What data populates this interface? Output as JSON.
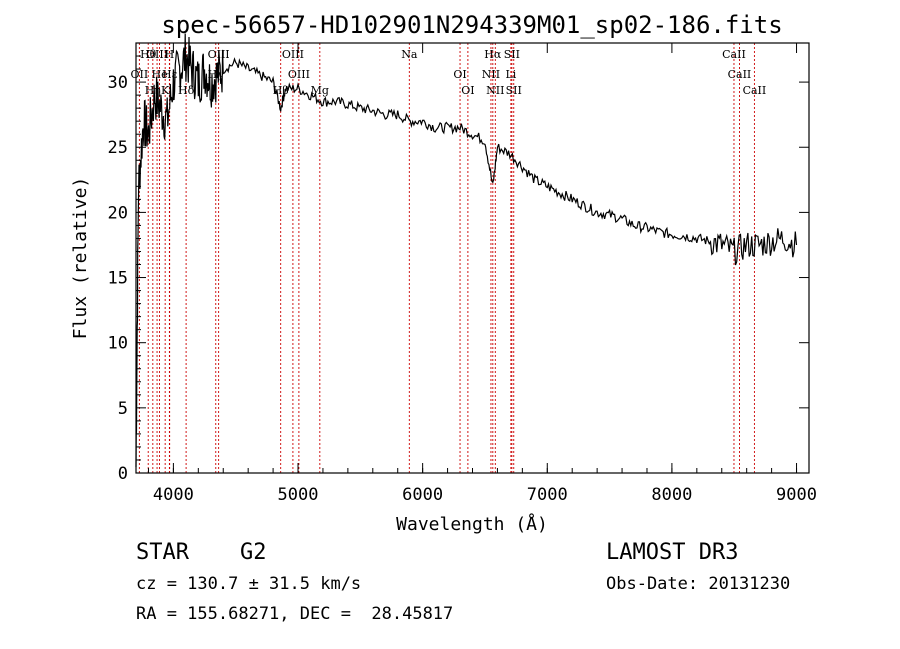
{
  "chart_data": {
    "type": "line",
    "title": "spec-56657-HD102901N294339M01_sp02-186.fits",
    "xlabel": "Wavelength (Å)",
    "ylabel": "Flux (relative)",
    "xlim": [
      3700,
      9100
    ],
    "ylim": [
      0,
      33
    ],
    "xticks": [
      4000,
      5000,
      6000,
      7000,
      8000,
      9000
    ],
    "xtick_labels": [
      "4000",
      "5000",
      "6000",
      "7000",
      "8000",
      "9000"
    ],
    "yticks": [
      0,
      5,
      10,
      15,
      20,
      25,
      30
    ],
    "ytick_labels": [
      "0",
      "5",
      "10",
      "15",
      "20",
      "25",
      "30"
    ],
    "grid": false,
    "series": [
      {
        "name": "flux",
        "x": [
          3700,
          3720,
          3760,
          3800,
          3850,
          3900,
          3950,
          4000,
          4050,
          4100,
          4150,
          4200,
          4250,
          4300,
          4350,
          4400,
          4500,
          4600,
          4700,
          4800,
          4861,
          4900,
          5000,
          5100,
          5200,
          5300,
          5400,
          5500,
          5600,
          5700,
          5800,
          5900,
          6000,
          6100,
          6200,
          6300,
          6400,
          6500,
          6563,
          6600,
          6700,
          6800,
          6900,
          7000,
          7100,
          7200,
          7300,
          7400,
          7500,
          7600,
          7700,
          7800,
          7900,
          8000,
          8100,
          8200,
          8300,
          8400,
          8500,
          8600,
          8700,
          8800,
          8900,
          9000
        ],
        "y": [
          0.5,
          22,
          27,
          26,
          29,
          28,
          27,
          30,
          31,
          32,
          31,
          30,
          31,
          30,
          30.5,
          31,
          31.5,
          31,
          30.5,
          30,
          28,
          29.5,
          29.5,
          29,
          28.5,
          28.5,
          28.3,
          28,
          27.8,
          27.5,
          27.5,
          27,
          27,
          26.5,
          26.5,
          26.5,
          26,
          25.5,
          22,
          25,
          24.5,
          23.5,
          22.5,
          22,
          21.5,
          21,
          20.5,
          20,
          19.8,
          19.5,
          19,
          18.8,
          18.5,
          18.3,
          18.2,
          18,
          17.8,
          17.5,
          17,
          17.5,
          17.5,
          17.8,
          18,
          17.5
        ]
      }
    ],
    "lines": [
      {
        "name": "Hθ",
        "wavelength": 3798
      },
      {
        "name": "OII",
        "wavelength": 3727
      },
      {
        "name": "Hη",
        "wavelength": 3835
      },
      {
        "name": "OIII",
        "wavelength": 3869
      },
      {
        "name": "He",
        "wavelength": 3889
      },
      {
        "name": "K",
        "wavelength": 3934
      },
      {
        "name": "H",
        "wavelength": 3968
      },
      {
        "name": "Hε",
        "wavelength": 3970
      },
      {
        "name": "Hδ",
        "wavelength": 4102
      },
      {
        "name": "OIII",
        "wavelength": 4363
      },
      {
        "name": "Hγ",
        "wavelength": 4340
      },
      {
        "name": "Hβ",
        "wavelength": 4861
      },
      {
        "name": "OIII",
        "wavelength": 4959
      },
      {
        "name": "OIII",
        "wavelength": 5007
      },
      {
        "name": "Mg",
        "wavelength": 5175
      },
      {
        "name": "Na",
        "wavelength": 5893
      },
      {
        "name": "OI",
        "wavelength": 6300
      },
      {
        "name": "OI",
        "wavelength": 6363
      },
      {
        "name": "Hα",
        "wavelength": 6563
      },
      {
        "name": "NII",
        "wavelength": 6548
      },
      {
        "name": "NII",
        "wavelength": 6583
      },
      {
        "name": "SII",
        "wavelength": 6716
      },
      {
        "name": "Li",
        "wavelength": 6708
      },
      {
        "name": "SII",
        "wavelength": 6731
      },
      {
        "name": "CaII",
        "wavelength": 8498
      },
      {
        "name": "CaII",
        "wavelength": 8542
      },
      {
        "name": "CaII",
        "wavelength": 8662
      }
    ]
  },
  "info": {
    "object_class": "STAR",
    "subclass": "G2",
    "survey": "LAMOST DR3",
    "cz": "cz = 130.7 ± 31.5 km/s",
    "obs_date": "Obs-Date: 20131230",
    "coords": "RA = 155.68271, DEC =  28.45817"
  },
  "colors": {
    "line_marker": "#cc0000",
    "spectrum": "#000000"
  }
}
